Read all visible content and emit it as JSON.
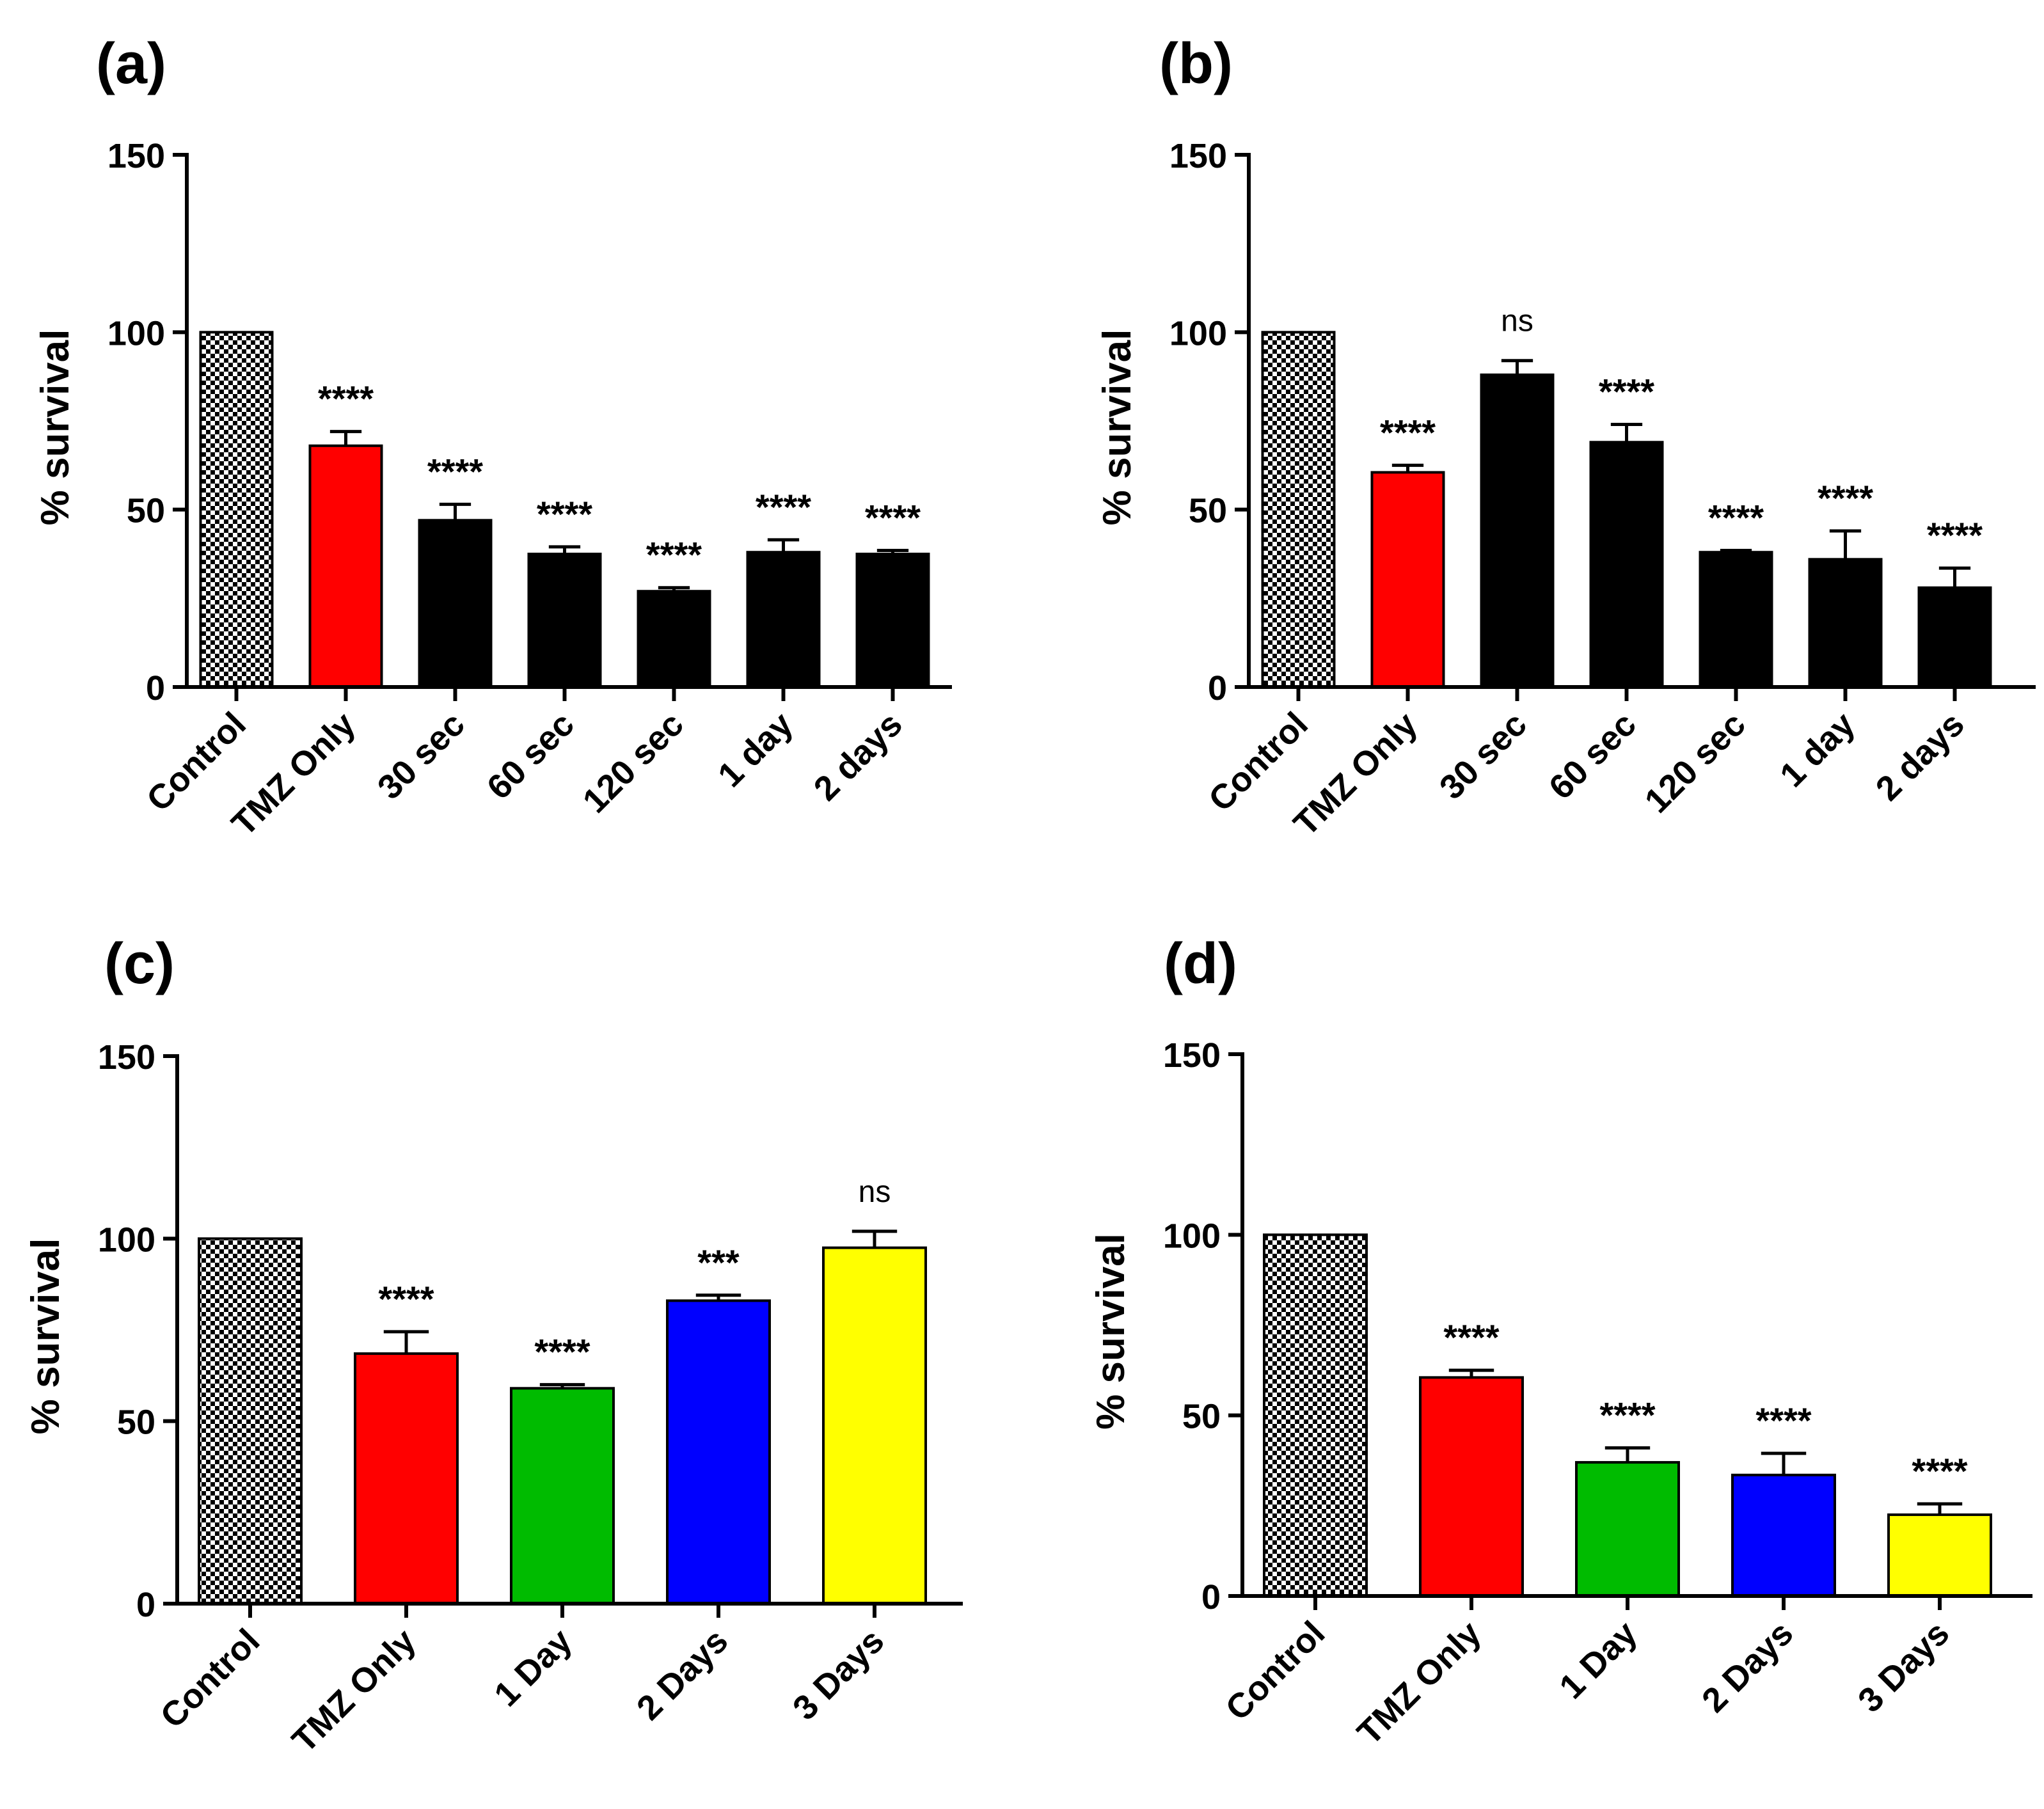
{
  "figure_title": "",
  "chart_data": [
    {
      "panel_label": "(a)",
      "type": "bar",
      "ylabel": "% survival",
      "ylim": [
        0,
        150
      ],
      "yticks": [
        0,
        50,
        100,
        150
      ],
      "ytick_labels": [
        "0",
        "50",
        "100",
        "150"
      ],
      "categories": [
        "Control",
        "TMZ Only",
        "30 sec",
        "60 sec",
        "120 sec",
        "1 day",
        "2 days"
      ],
      "values": [
        100,
        68,
        47,
        37.5,
        27,
        38,
        37.5
      ],
      "errors": [
        0,
        4,
        4.5,
        2,
        1,
        3.5,
        1
      ],
      "significance": [
        "",
        "****",
        "****",
        "****",
        "****",
        "****",
        "****"
      ],
      "bar_colors": [
        "pattern-checker",
        "#ff0000",
        "#000000",
        "#000000",
        "#000000",
        "#000000",
        "#000000"
      ]
    },
    {
      "panel_label": "(b)",
      "type": "bar",
      "ylabel": "% survival",
      "ylim": [
        0,
        150
      ],
      "yticks": [
        0,
        50,
        100,
        150
      ],
      "ytick_labels": [
        "0",
        "50",
        "100",
        "150"
      ],
      "categories": [
        "Control",
        "TMZ Only",
        "30 sec",
        "60 sec",
        "120 sec",
        "1 day",
        "2 days"
      ],
      "values": [
        100,
        60.5,
        88,
        69,
        38,
        36,
        28
      ],
      "errors": [
        0,
        2,
        4,
        5,
        0.5,
        8,
        5.5
      ],
      "significance": [
        "",
        "****",
        "ns",
        "****",
        "****",
        "****",
        "****"
      ],
      "bar_colors": [
        "pattern-checker",
        "#ff0000",
        "#000000",
        "#000000",
        "#000000",
        "#000000",
        "#000000"
      ]
    },
    {
      "panel_label": "(c)",
      "type": "bar",
      "ylabel": "% survival",
      "ylim": [
        0,
        150
      ],
      "yticks": [
        0,
        50,
        100,
        150
      ],
      "ytick_labels": [
        "0",
        "50",
        "100",
        "150"
      ],
      "categories": [
        "Control",
        "TMZ Only",
        "1 Day",
        "2 Days",
        "3 Days"
      ],
      "values": [
        100,
        68.5,
        59,
        83,
        97.5
      ],
      "errors": [
        0,
        6,
        1,
        1.5,
        4.5
      ],
      "significance": [
        "",
        "****",
        "****",
        "***",
        "ns"
      ],
      "bar_colors": [
        "pattern-checker",
        "#ff0000",
        "#00bb00",
        "#0000ff",
        "#ffff00"
      ]
    },
    {
      "panel_label": "(d)",
      "type": "bar",
      "ylabel": "% survival",
      "ylim": [
        0,
        150
      ],
      "yticks": [
        0,
        50,
        100,
        150
      ],
      "ytick_labels": [
        "0",
        "50",
        "100",
        "150"
      ],
      "categories": [
        "Control",
        "TMZ Only",
        "1 Day",
        "2 Days",
        "3 Days"
      ],
      "values": [
        100,
        60.5,
        37,
        33.5,
        22.5
      ],
      "errors": [
        0,
        2,
        4,
        6,
        3
      ],
      "significance": [
        "",
        "****",
        "****",
        "****",
        "****"
      ],
      "bar_colors": [
        "pattern-checker",
        "#ff0000",
        "#00bb00",
        "#0000ff",
        "#ffff00"
      ]
    }
  ]
}
